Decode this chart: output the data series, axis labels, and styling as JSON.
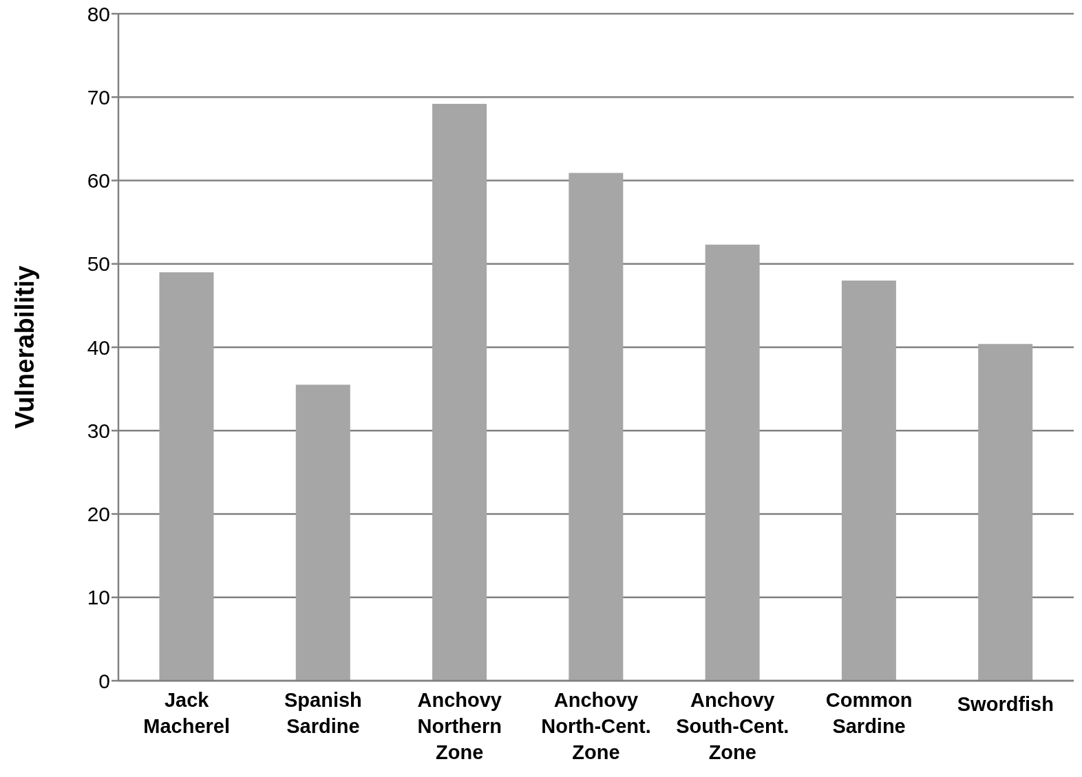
{
  "chart_data": {
    "type": "bar",
    "ylabel": "Vulnerabilitiy",
    "categories": [
      "Jack Macherel",
      "Spanish Sardine",
      "Anchovy Northern Zone",
      "Anchovy North-Cent. Zone",
      "Anchovy South-Cent. Zone",
      "Common Sardine",
      "Swordfish"
    ],
    "values": [
      49,
      35.5,
      69.2,
      60.9,
      52.3,
      48,
      40.4
    ],
    "color": "#a6a6a6",
    "ylim": [
      0,
      80
    ],
    "yticks": [
      0,
      10,
      20,
      30,
      40,
      50,
      60,
      70,
      80
    ],
    "grid": "y"
  }
}
